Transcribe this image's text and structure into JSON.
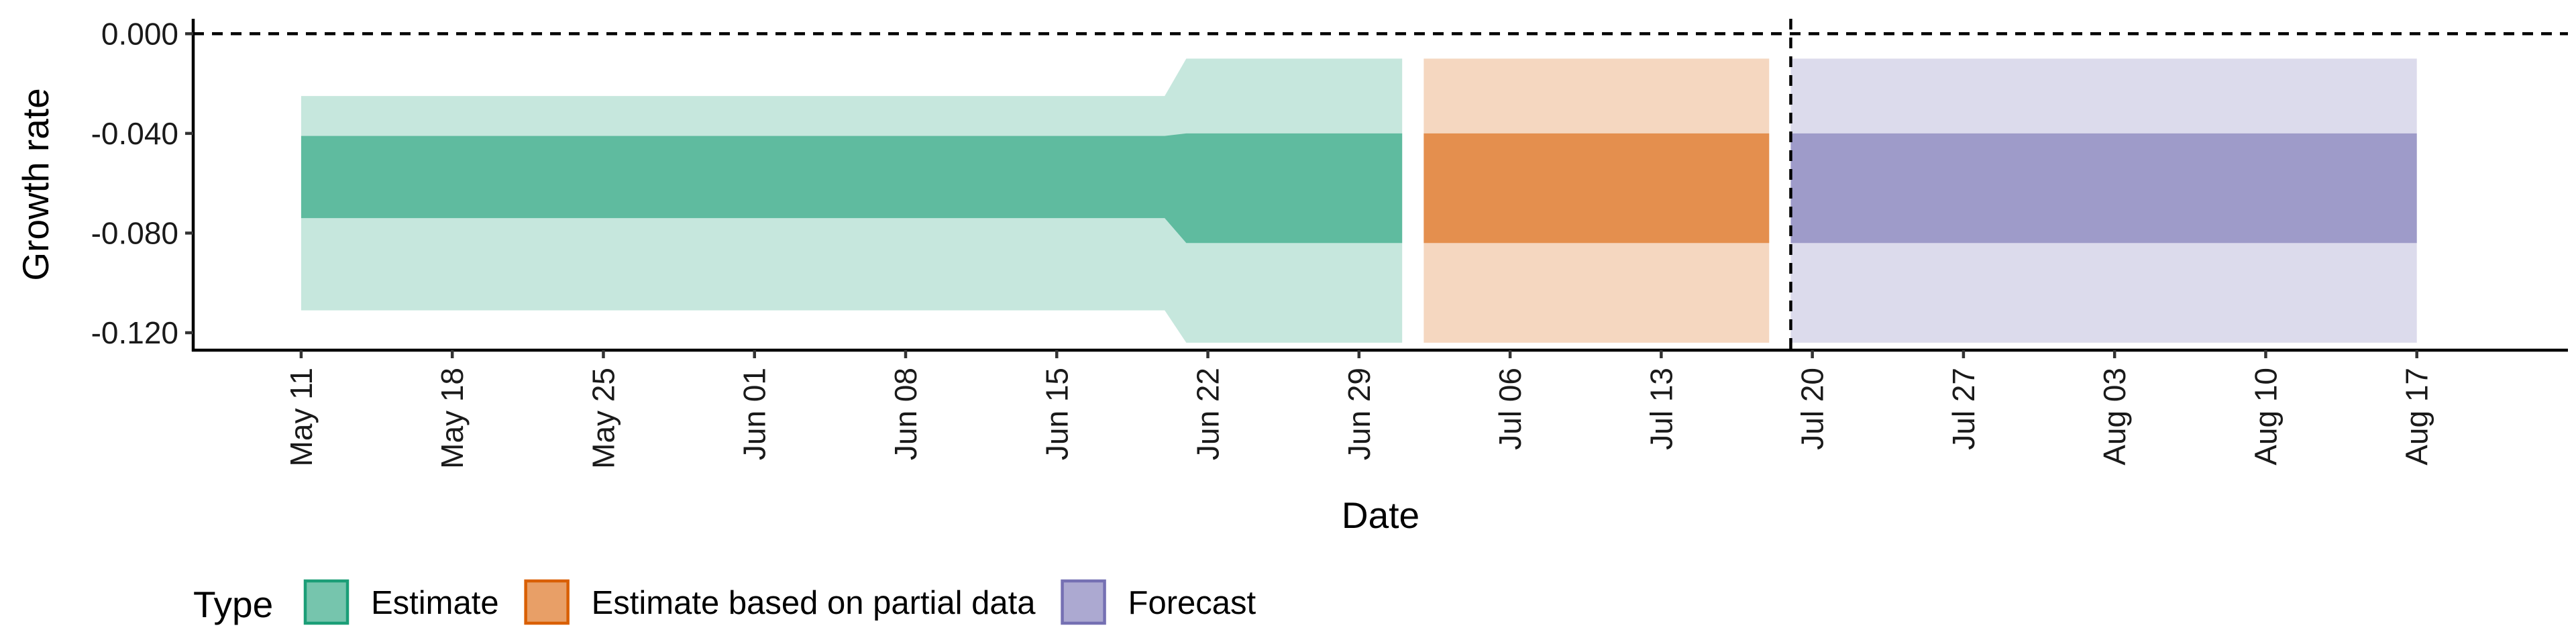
{
  "chart_data": {
    "type": "area",
    "xlabel": "Date",
    "ylabel": "Growth rate",
    "y_ticks": [
      0.0,
      -0.04,
      -0.08,
      -0.12
    ],
    "y_tick_labels": [
      "0.000",
      "-0.040",
      "-0.080",
      "-0.120"
    ],
    "ylim": [
      -0.127,
      0.006
    ],
    "x_ticks": [
      "2020-05-11",
      "2020-05-18",
      "2020-05-25",
      "2020-06-01",
      "2020-06-08",
      "2020-06-15",
      "2020-06-22",
      "2020-06-29",
      "2020-07-06",
      "2020-07-13",
      "2020-07-20",
      "2020-07-27",
      "2020-08-03",
      "2020-08-10",
      "2020-08-17"
    ],
    "x_tick_labels": [
      "May 11",
      "May 18",
      "May 25",
      "Jun 01",
      "Jun 08",
      "Jun 15",
      "Jun 22",
      "Jun 29",
      "Jul 06",
      "Jul 13",
      "Jul 20",
      "Jul 27",
      "Aug 03",
      "Aug 10",
      "Aug 17"
    ],
    "xlim": [
      "2020-05-06",
      "2020-08-24"
    ],
    "hline_y": 0.0,
    "vline_x": "2020-07-19",
    "grid": false,
    "legend_position": "bottom-left",
    "legend_title": "Type",
    "series": [
      {
        "name": "Estimate",
        "color": "#1b9e77",
        "points": [
          {
            "date": "2020-05-11",
            "lower90": -0.111,
            "lower50": -0.074,
            "upper50": -0.041,
            "upper90": -0.025
          },
          {
            "date": "2020-06-20",
            "lower90": -0.111,
            "lower50": -0.074,
            "upper50": -0.041,
            "upper90": -0.025
          },
          {
            "date": "2020-06-21",
            "lower90": -0.124,
            "lower50": -0.084,
            "upper50": -0.04,
            "upper90": -0.01
          },
          {
            "date": "2020-07-01",
            "lower90": -0.124,
            "lower50": -0.084,
            "upper50": -0.04,
            "upper90": -0.01
          }
        ]
      },
      {
        "name": "Estimate based on partial data",
        "color": "#d95f02",
        "points": [
          {
            "date": "2020-07-02",
            "lower90": -0.124,
            "lower50": -0.084,
            "upper50": -0.04,
            "upper90": -0.01
          },
          {
            "date": "2020-07-18",
            "lower90": -0.124,
            "lower50": -0.084,
            "upper50": -0.04,
            "upper90": -0.01
          }
        ]
      },
      {
        "name": "Forecast",
        "color": "#7570b3",
        "points": [
          {
            "date": "2020-07-19",
            "lower90": -0.124,
            "lower50": -0.084,
            "upper50": -0.04,
            "upper90": -0.01
          },
          {
            "date": "2020-08-17",
            "lower90": -0.124,
            "lower50": -0.084,
            "upper50": -0.04,
            "upper90": -0.01
          }
        ]
      }
    ]
  }
}
